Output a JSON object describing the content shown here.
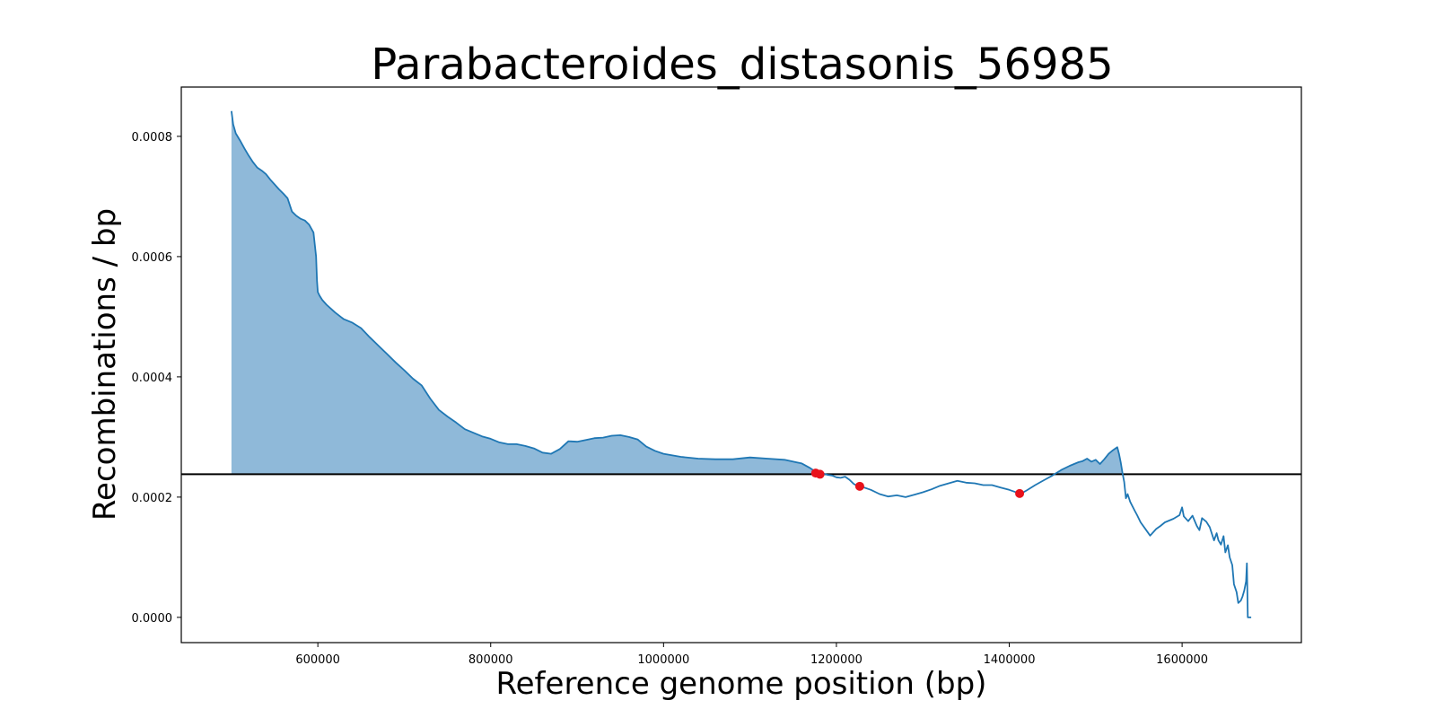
{
  "chart_data": {
    "type": "line",
    "title": "Parabacteroides_distasonis_56985",
    "xlabel": "Reference genome position (bp)",
    "ylabel": "Recombinations / bp",
    "xlim": [
      442000,
      1738000
    ],
    "ylim": [
      -4.2e-05,
      0.000882
    ],
    "xticks": [
      600000,
      800000,
      1000000,
      1200000,
      1400000,
      1600000
    ],
    "yticks": [
      0.0,
      0.0002,
      0.0004,
      0.0006,
      0.0008
    ],
    "ytick_labels": [
      "0.0000",
      "0.0002",
      "0.0004",
      "0.0006",
      "0.0008"
    ],
    "grid": false,
    "threshold": 0.000238,
    "fill_above_threshold": true,
    "colors": {
      "line": "#1f77b4",
      "fill": "#8fb9d9",
      "threshold": "#000000",
      "markers": "#e8121b"
    },
    "series": [
      {
        "x": [
          500000,
          502000,
          505000,
          510000,
          515000,
          520000,
          525000,
          530000,
          535000,
          540000,
          545000,
          550000,
          555000,
          560000,
          565000,
          570000,
          575000,
          580000,
          585000,
          590000,
          595000,
          598000,
          599000,
          600000,
          602000,
          605000,
          610000,
          620000,
          630000,
          640000,
          650000,
          660000,
          670000,
          680000,
          690000,
          700000,
          710000,
          720000,
          730000,
          740000,
          750000,
          760000,
          770000,
          780000,
          790000,
          800000,
          810000,
          820000,
          830000,
          840000,
          850000,
          860000,
          870000,
          880000,
          890000,
          900000,
          910000,
          920000,
          930000,
          940000,
          950000,
          960000,
          970000,
          980000,
          990000,
          1000000,
          1020000,
          1040000,
          1060000,
          1080000,
          1100000,
          1120000,
          1140000,
          1160000,
          1170000,
          1175000,
          1180000,
          1185000,
          1190000,
          1195000,
          1200000,
          1205000,
          1210000,
          1215000,
          1220000,
          1225000,
          1230000,
          1240000,
          1250000,
          1260000,
          1270000,
          1280000,
          1290000,
          1300000,
          1310000,
          1320000,
          1330000,
          1340000,
          1350000,
          1360000,
          1370000,
          1380000,
          1390000,
          1400000,
          1410000,
          1415000,
          1420000,
          1430000,
          1440000,
          1450000,
          1460000,
          1470000,
          1480000,
          1485000,
          1490000,
          1495000,
          1500000,
          1505000,
          1510000,
          1515000,
          1520000,
          1525000,
          1527000,
          1529000,
          1531000,
          1533000,
          1535000,
          1537000,
          1540000,
          1545000,
          1548000,
          1552000,
          1557000,
          1563000,
          1570000,
          1575000,
          1580000,
          1590000,
          1597000,
          1600000,
          1602000,
          1607000,
          1612000,
          1617000,
          1620000,
          1623000,
          1628000,
          1632000,
          1637000,
          1640000,
          1642000,
          1645000,
          1648000,
          1650000,
          1653000,
          1655000,
          1658000,
          1660000,
          1663000,
          1665000,
          1668000,
          1670000,
          1672000,
          1674000,
          1675000,
          1676000,
          1677000,
          1680000
        ],
        "y": [
          0.000842,
          0.00082,
          0.000805,
          0.000793,
          0.00078,
          0.000768,
          0.000757,
          0.000748,
          0.000743,
          0.000737,
          0.000728,
          0.00072,
          0.000712,
          0.000705,
          0.000697,
          0.000675,
          0.000668,
          0.000663,
          0.00066,
          0.000653,
          0.00064,
          0.0006,
          0.00056,
          0.000541,
          0.000535,
          0.000528,
          0.00052,
          0.000507,
          0.000496,
          0.00049,
          0.000481,
          0.000466,
          0.000452,
          0.000438,
          0.000424,
          0.000411,
          0.000397,
          0.000386,
          0.000364,
          0.000345,
          0.000334,
          0.000324,
          0.000313,
          0.000307,
          0.000301,
          0.000297,
          0.000291,
          0.000288,
          0.000288,
          0.000285,
          0.000281,
          0.000274,
          0.000272,
          0.00028,
          0.000293,
          0.000292,
          0.000295,
          0.000298,
          0.000299,
          0.000302,
          0.000303,
          0.0003,
          0.000296,
          0.000284,
          0.000277,
          0.000272,
          0.000267,
          0.000264,
          0.000263,
          0.000263,
          0.000266,
          0.000264,
          0.000262,
          0.000256,
          0.000248,
          0.000243,
          0.000239,
          0.000239,
          0.000237,
          0.000236,
          0.000233,
          0.000232,
          0.000234,
          0.000229,
          0.000222,
          0.000218,
          0.000217,
          0.000212,
          0.000205,
          0.000201,
          0.000203,
          0.0002,
          0.000204,
          0.000208,
          0.000213,
          0.000219,
          0.000223,
          0.000227,
          0.000224,
          0.000223,
          0.00022,
          0.00022,
          0.000216,
          0.000212,
          0.000207,
          0.000207,
          0.000211,
          0.00022,
          0.000228,
          0.000236,
          0.000245,
          0.000252,
          0.000258,
          0.00026,
          0.000264,
          0.000259,
          0.000262,
          0.000255,
          0.000263,
          0.000272,
          0.000278,
          0.000283,
          0.000272,
          0.000258,
          0.00024,
          0.000225,
          0.000198,
          0.000205,
          0.000192,
          0.000178,
          0.00017,
          0.000158,
          0.000148,
          0.000136,
          0.000147,
          0.000152,
          0.000158,
          0.000164,
          0.00017,
          0.000183,
          0.000168,
          0.00016,
          0.000169,
          0.000152,
          0.000145,
          0.000165,
          0.000159,
          0.00015,
          0.000128,
          0.00014,
          0.000128,
          0.000121,
          0.000135,
          0.000108,
          0.00012,
          0.0001,
          8.7e-05,
          5.5e-05,
          4.2e-05,
          2.4e-05,
          2.8e-05,
          3.5e-05,
          4.5e-05,
          6e-05,
          9e-05,
          0.0,
          0.0,
          0.0
        ]
      }
    ],
    "markers": {
      "x": [
        1176000,
        1181000,
        1227000,
        1412000
      ],
      "y": [
        0.00024,
        0.000238,
        0.000218,
        0.000206
      ]
    }
  }
}
